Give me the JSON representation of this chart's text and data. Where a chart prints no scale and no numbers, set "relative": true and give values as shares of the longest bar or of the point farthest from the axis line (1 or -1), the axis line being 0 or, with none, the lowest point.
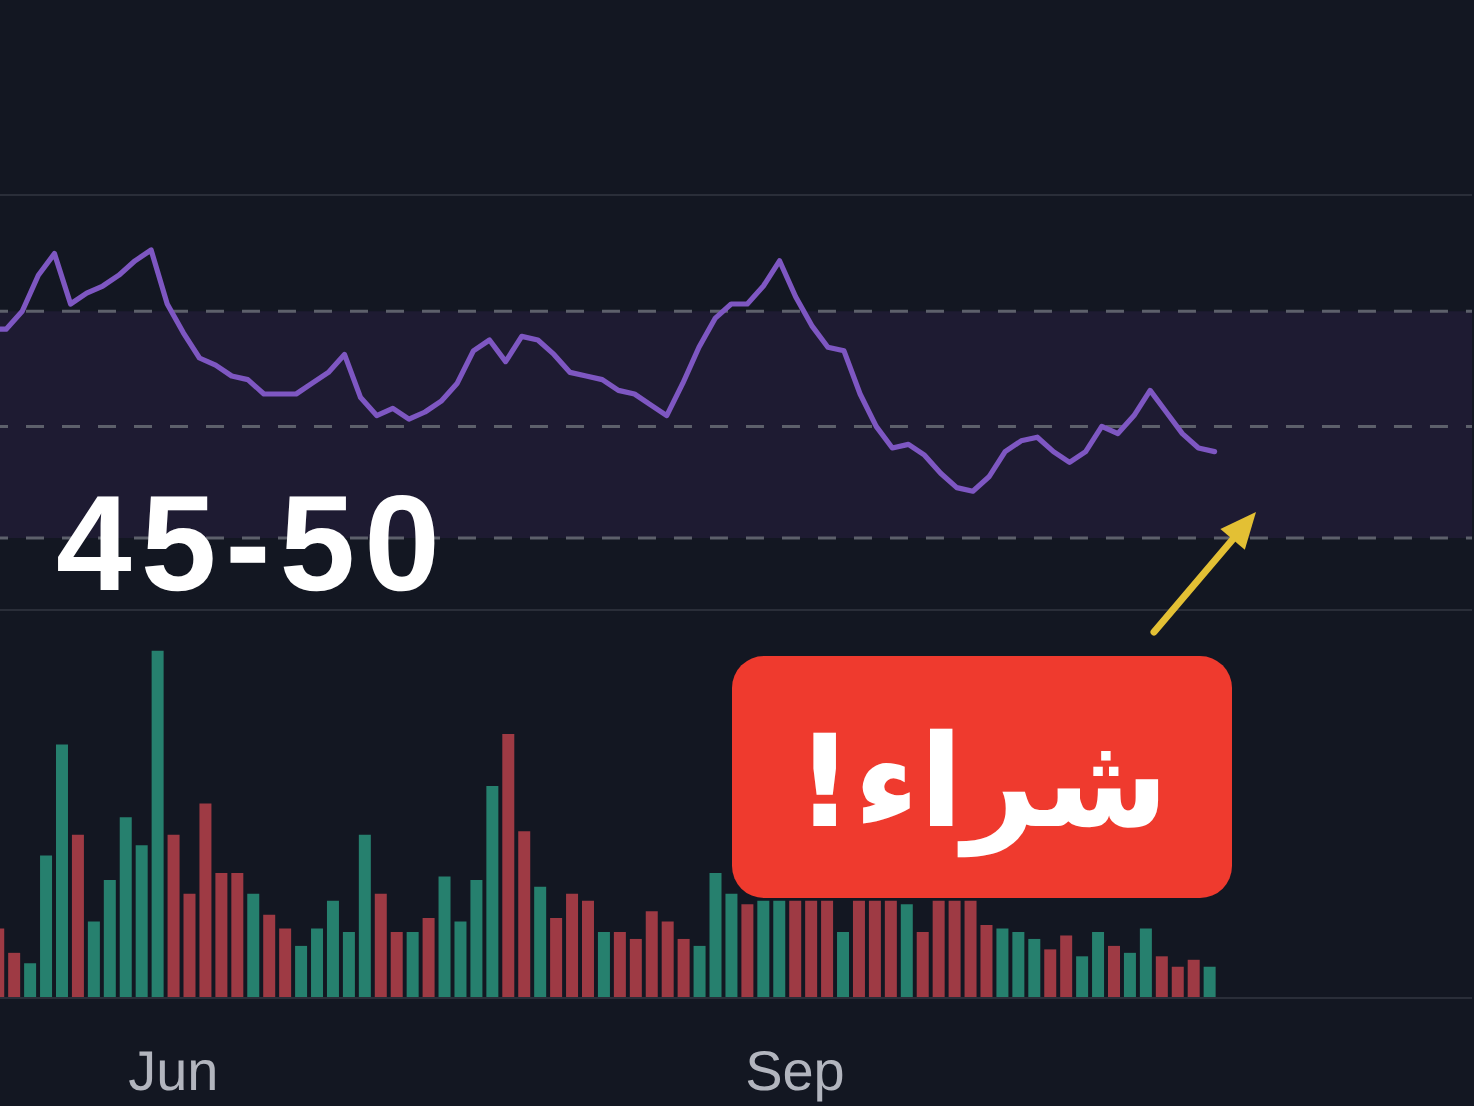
{
  "chart_data": [
    {
      "type": "line",
      "relative": true,
      "categories": [
        null,
        null,
        null,
        null,
        null,
        null,
        null,
        null,
        null,
        null,
        null,
        null,
        null,
        null,
        null,
        null,
        null,
        null,
        null,
        null,
        null,
        null,
        null,
        null,
        null,
        null,
        null,
        null,
        null,
        null,
        null,
        null,
        null,
        null,
        null,
        null,
        null,
        null,
        null,
        null,
        null,
        null,
        null,
        null,
        null,
        null,
        null,
        null,
        null,
        null,
        null,
        null,
        null,
        null,
        null,
        null,
        null,
        null,
        null,
        null,
        null,
        null,
        null,
        null,
        null,
        null,
        null,
        null,
        null,
        null,
        null,
        null,
        null,
        null,
        null,
        null,
        null,
        null,
        null,
        null,
        null,
        null,
        null,
        null,
        null,
        null,
        null,
        null,
        null,
        null,
        null,
        null,
        null
      ],
      "series": [
        {
          "color": "#7e57c2",
          "values": [
            0.78,
            0.78,
            0.83,
            0.93,
            0.99,
            0.85,
            0.88,
            0.9,
            0.93,
            0.97,
            1,
            0.85,
            0.77,
            0.7,
            0.68,
            0.65,
            0.64,
            0.6,
            0.6,
            0.6,
            0.63,
            0.66,
            0.71,
            0.59,
            0.54,
            0.56,
            0.53,
            0.55,
            0.58,
            0.63,
            0.72,
            0.75,
            0.69,
            0.76,
            0.75,
            0.71,
            0.66,
            0.65,
            0.64,
            0.61,
            0.6,
            0.57,
            0.54,
            0.63,
            0.73,
            0.81,
            0.85,
            0.85,
            0.9,
            0.97,
            0.87,
            0.79,
            0.73,
            0.72,
            0.6,
            0.51,
            0.45,
            0.46,
            0.43,
            0.38,
            0.34,
            0.33,
            0.37,
            0.44,
            0.47,
            0.48,
            0.44,
            0.41,
            0.44,
            0.51,
            0.49,
            0.54,
            0.61,
            0.55,
            0.49,
            0.45,
            0.44,
            null,
            null,
            null,
            null,
            null,
            null,
            null,
            null,
            null,
            null,
            null,
            null,
            null,
            null,
            null,
            null
          ]
        }
      ],
      "ref_lines": [
        {
          "axis": "y",
          "value": 0.83,
          "line_style": "dashed",
          "color": "#5d606b"
        },
        {
          "axis": "y",
          "value": 0.51,
          "line_style": "dashed",
          "color": "#5d606b"
        },
        {
          "axis": "y",
          "value": 0.2,
          "line_style": "dashed",
          "color": "#5d606b"
        }
      ],
      "bands": [
        {
          "axis": "y",
          "from": 0.2,
          "to": 0.83,
          "color": "#1e1b32"
        }
      ],
      "annotations": [
        "45-50"
      ]
    },
    {
      "type": "bar",
      "relative": true,
      "tick_labels": "x",
      "categories": [
        null,
        null,
        null,
        null,
        null,
        null,
        null,
        null,
        null,
        null,
        null,
        "Jun",
        null,
        null,
        null,
        null,
        null,
        null,
        null,
        null,
        null,
        null,
        null,
        null,
        null,
        null,
        null,
        null,
        null,
        null,
        null,
        null,
        null,
        null,
        null,
        null,
        null,
        null,
        null,
        null,
        null,
        null,
        null,
        null,
        null,
        null,
        null,
        null,
        null,
        null,
        "Sep",
        null,
        null,
        null,
        null,
        null,
        null,
        null,
        null,
        null,
        null,
        null,
        null,
        null,
        null,
        null,
        null,
        null,
        null,
        null,
        null,
        null,
        null,
        null,
        null,
        null,
        null,
        null,
        null,
        null,
        null,
        null,
        null,
        null,
        null,
        null,
        null,
        null,
        null,
        null,
        null,
        null,
        null
      ],
      "values": [
        0.2,
        0.13,
        0.1,
        0.41,
        0.73,
        0.47,
        0.22,
        0.34,
        0.52,
        0.44,
        1,
        0.47,
        0.3,
        0.56,
        0.36,
        0.36,
        0.3,
        0.24,
        0.2,
        0.15,
        0.2,
        0.28,
        0.19,
        0.47,
        0.3,
        0.19,
        0.19,
        0.23,
        0.35,
        0.22,
        0.34,
        0.61,
        0.76,
        0.48,
        0.32,
        0.23,
        0.3,
        0.28,
        0.19,
        0.19,
        0.17,
        0.25,
        0.22,
        0.17,
        0.15,
        0.36,
        0.3,
        0.27,
        0.28,
        0.28,
        0.28,
        0.28,
        0.28,
        0.19,
        0.28,
        0.28,
        0.28,
        0.27,
        0.19,
        0.28,
        0.28,
        0.28,
        0.21,
        0.2,
        0.19,
        0.17,
        0.14,
        0.18,
        0.12,
        0.19,
        0.15,
        0.13,
        0.2,
        0.12,
        0.09,
        0.11,
        0.09,
        null,
        null,
        null,
        null,
        null,
        null,
        null,
        null,
        null,
        null,
        null,
        null,
        null,
        null,
        null,
        null
      ],
      "colors": [
        "#9e3a44",
        "#9e3a44",
        "#26806e",
        "#26806e",
        "#26806e",
        "#9e3a44",
        "#26806e",
        "#26806e",
        "#26806e",
        "#26806e",
        "#26806e",
        "#9e3a44",
        "#9e3a44",
        "#9e3a44",
        "#9e3a44",
        "#9e3a44",
        "#26806e",
        "#9e3a44",
        "#9e3a44",
        "#26806e",
        "#26806e",
        "#26806e",
        "#26806e",
        "#26806e",
        "#9e3a44",
        "#9e3a44",
        "#26806e",
        "#9e3a44",
        "#26806e",
        "#26806e",
        "#26806e",
        "#26806e",
        "#9e3a44",
        "#9e3a44",
        "#26806e",
        "#9e3a44",
        "#9e3a44",
        "#9e3a44",
        "#26806e",
        "#9e3a44",
        "#9e3a44",
        "#9e3a44",
        "#9e3a44",
        "#9e3a44",
        "#26806e",
        "#26806e",
        "#26806e",
        "#9e3a44",
        "#26806e",
        "#26806e",
        "#9e3a44",
        "#9e3a44",
        "#9e3a44",
        "#26806e",
        "#9e3a44",
        "#9e3a44",
        "#9e3a44",
        "#26806e",
        "#9e3a44",
        "#9e3a44",
        "#9e3a44",
        "#9e3a44",
        "#9e3a44",
        "#26806e",
        "#26806e",
        "#26806e",
        "#9e3a44",
        "#9e3a44",
        "#26806e",
        "#26806e",
        "#9e3a44",
        "#26806e",
        "#26806e",
        "#9e3a44",
        "#9e3a44",
        "#9e3a44",
        "#26806e",
        null,
        null,
        null,
        null,
        null,
        null,
        null,
        null,
        null,
        null,
        null,
        null,
        null,
        null,
        null,
        null
      ],
      "annotations": [
        "شراء!"
      ]
    }
  ]
}
